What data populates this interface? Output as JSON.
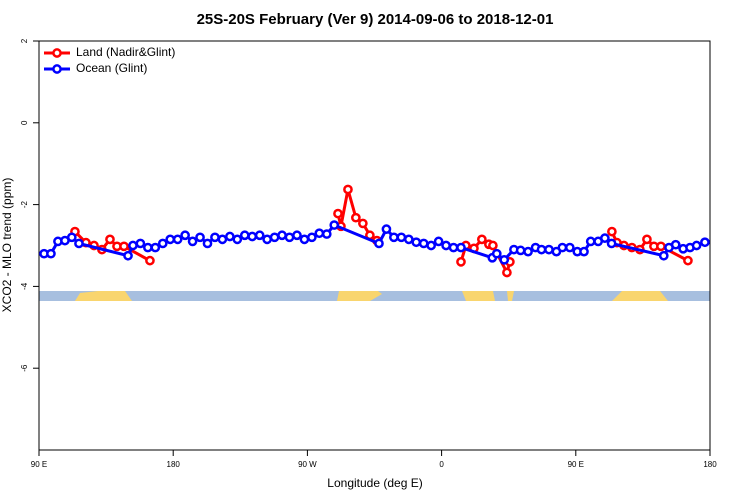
{
  "chart_data": {
    "type": "line",
    "title": "25S-20S February (Ver 9)   2014-09-06 to 2018-12-01",
    "x_label": "Longitude (deg E)",
    "y_label": "XCO2 - MLO trend (ppm)",
    "xlim": [
      90,
      540
    ],
    "ylim": [
      -8,
      2
    ],
    "xticks": [
      {
        "value": 90,
        "label": "90 E"
      },
      180,
      {
        "value": 270,
        "label": "90 W"
      },
      {
        "value": 360,
        "label": "0"
      },
      {
        "value": 450,
        "label": "90 E"
      },
      {
        "value": 540,
        "label": "180"
      }
    ],
    "yticks": [
      2,
      0,
      -2,
      -4,
      -6
    ],
    "legend": "top-left",
    "series": [
      {
        "name": "Land (Nadir&Glint)",
        "color": "#ff0000",
        "x": [
          114.1,
          121.5,
          126.9,
          132.2,
          137.6,
          142.3,
          147,
          164.4,
          null,
          290.5,
          292.5,
          297.2,
          302.5,
          307.2,
          311.9,
          316.6,
          null,
          373,
          376.3,
          381.7,
          387,
          391.7,
          394.4,
          403.8,
          405.8,
          null,
          474.2,
          477.6,
          482.3,
          487.6,
          493,
          497.7,
          502.4,
          507.1,
          525.2
        ],
        "values": [
          -2.66,
          -2.93,
          -3.0,
          -3.1,
          -2.85,
          -3.02,
          -3.02,
          -3.37,
          null,
          -2.22,
          -2.53,
          -1.63,
          -2.32,
          -2.46,
          -2.75,
          -2.88,
          null,
          -3.4,
          -3.0,
          -3.07,
          -2.85,
          -2.97,
          -3.0,
          -3.66,
          -3.4,
          null,
          -2.66,
          -2.93,
          -3.0,
          -3.05,
          -3.1,
          -2.85,
          -3.02,
          -3.02,
          -3.37
        ]
      },
      {
        "name": "Ocean (Glint)",
        "color": "#0000ff",
        "x": [
          93.4,
          98,
          102.7,
          107.4,
          112,
          116.8,
          149.7,
          153,
          158,
          163,
          168,
          173,
          178,
          183,
          188,
          193,
          198,
          203,
          208,
          213,
          218,
          223,
          228,
          233,
          238,
          243,
          248,
          253,
          258,
          263,
          268,
          273,
          278,
          283,
          288,
          318,
          323,
          328,
          333,
          338,
          343,
          348,
          353,
          358,
          363,
          368,
          373,
          394,
          397,
          402,
          408.5,
          413,
          418,
          423,
          427,
          432,
          437,
          441,
          446,
          451,
          455.5,
          460,
          465,
          469.5,
          474,
          509,
          512.5,
          517,
          522,
          526.6,
          531,
          536.6
        ],
        "values": [
          -3.2,
          -3.2,
          -2.9,
          -2.88,
          -2.8,
          -2.95,
          -3.25,
          -3.0,
          -2.95,
          -3.05,
          -3.05,
          -2.95,
          -2.85,
          -2.85,
          -2.75,
          -2.9,
          -2.8,
          -2.95,
          -2.8,
          -2.85,
          -2.78,
          -2.85,
          -2.75,
          -2.78,
          -2.75,
          -2.85,
          -2.8,
          -2.75,
          -2.8,
          -2.75,
          -2.85,
          -2.8,
          -2.7,
          -2.72,
          -2.5,
          -2.95,
          -2.6,
          -2.8,
          -2.8,
          -2.85,
          -2.92,
          -2.95,
          -3.0,
          -2.9,
          -3.0,
          -3.05,
          -3.05,
          -3.3,
          -3.2,
          -3.35,
          -3.1,
          -3.12,
          -3.15,
          -3.05,
          -3.1,
          -3.1,
          -3.15,
          -3.05,
          -3.05,
          -3.15,
          -3.15,
          -2.9,
          -2.9,
          -2.82,
          -2.95,
          -3.25,
          -3.05,
          -2.98,
          -3.08,
          -3.05,
          -3.0,
          -2.92
        ]
      }
    ]
  }
}
